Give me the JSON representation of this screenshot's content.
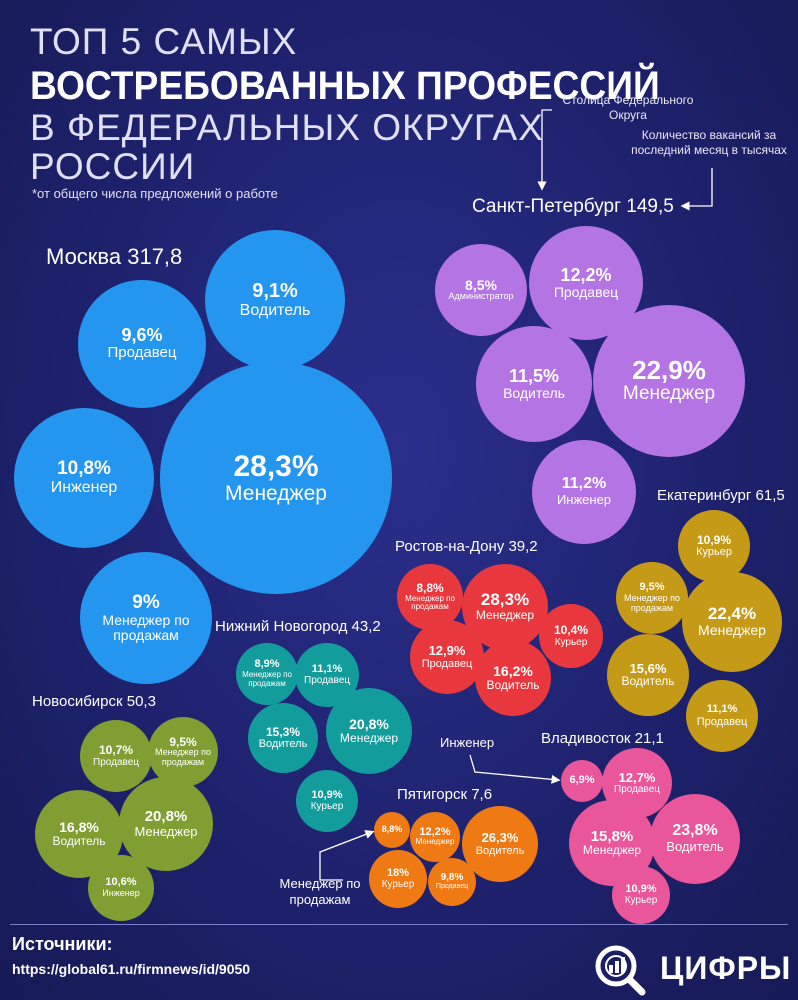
{
  "title": {
    "line1": "ТОП 5 САМЫХ",
    "line2": "ВОСТРЕБОВАННЫХ ПРОФЕССИЙ",
    "line3": "В ФЕДЕРАЛЬНЫХ ОКРУГАХ",
    "line4": "РОССИИ",
    "footnote": "*от общего числа предложений о работе"
  },
  "legend": {
    "capital": "Столица Федерального Округа",
    "vacancies": "Количество вакансий за последний месяц в тысячах",
    "engineer": "Инженер",
    "sales_manager": "Менеджер по продажам"
  },
  "regions": {
    "moscow": {
      "name": "Москва 317,8",
      "items": [
        {
          "pct": "9,1%",
          "job": "Водитель"
        },
        {
          "pct": "9,6%",
          "job": "Продавец"
        },
        {
          "pct": "10,8%",
          "job": "Инженер"
        },
        {
          "pct": "28,3%",
          "job": "Менеджер"
        },
        {
          "pct": "9%",
          "job": "Менеджер по продажам"
        }
      ]
    },
    "spb": {
      "name": "Санкт-Петербург 149,5",
      "items": [
        {
          "pct": "8,5%",
          "job": "Администратор"
        },
        {
          "pct": "12,2%",
          "job": "Продавец"
        },
        {
          "pct": "11,5%",
          "job": "Водитель"
        },
        {
          "pct": "22,9%",
          "job": "Менеджер"
        },
        {
          "pct": "11,2%",
          "job": "Инженер"
        }
      ]
    },
    "ekb": {
      "name": "Екатеринбург 61,5",
      "items": [
        {
          "pct": "10,9%",
          "job": "Курьер"
        },
        {
          "pct": "9,5%",
          "job": "Менеджер по продажам"
        },
        {
          "pct": "22,4%",
          "job": "Менеджер"
        },
        {
          "pct": "15,6%",
          "job": "Водитель"
        },
        {
          "pct": "11,1%",
          "job": "Продавец"
        }
      ]
    },
    "rostov": {
      "name": "Ростов-на-Дону 39,2",
      "items": [
        {
          "pct": "8,8%",
          "job": "Менеджер по продажам"
        },
        {
          "pct": "28,3%",
          "job": "Менеджер"
        },
        {
          "pct": "10,4%",
          "job": "Курьер"
        },
        {
          "pct": "12,9%",
          "job": "Продавец"
        },
        {
          "pct": "16,2%",
          "job": "Водитель"
        }
      ]
    },
    "nnov": {
      "name": "Нижний Новогород 43,2",
      "items": [
        {
          "pct": "8,9%",
          "job": "Менеджер по продажам"
        },
        {
          "pct": "11,1%",
          "job": "Продавец"
        },
        {
          "pct": "15,3%",
          "job": "Водитель"
        },
        {
          "pct": "20,8%",
          "job": "Менеджер"
        },
        {
          "pct": "10,9%",
          "job": "Курьер"
        }
      ]
    },
    "nsk": {
      "name": "Новосибирск 50,3",
      "items": [
        {
          "pct": "10,7%",
          "job": "Продавец"
        },
        {
          "pct": "9,5%",
          "job": "Менеджер по продажам"
        },
        {
          "pct": "16,8%",
          "job": "Водитель"
        },
        {
          "pct": "20,8%",
          "job": "Менеджер"
        },
        {
          "pct": "10,6%",
          "job": "Инженер"
        }
      ]
    },
    "pyat": {
      "name": "Пятигорск 7,6",
      "items": [
        {
          "pct": "8,8%",
          "job": ""
        },
        {
          "pct": "12,2%",
          "job": "Менеджер"
        },
        {
          "pct": "26,3%",
          "job": "Водитель"
        },
        {
          "pct": "18%",
          "job": "Курьер"
        },
        {
          "pct": "9,8%",
          "job": "Продавец"
        }
      ]
    },
    "vlad": {
      "name": "Владивосток 21,1",
      "items": [
        {
          "pct": "6,9%",
          "job": ""
        },
        {
          "pct": "12,7%",
          "job": "Продавец"
        },
        {
          "pct": "15,8%",
          "job": "Менеджер"
        },
        {
          "pct": "23,8%",
          "job": "Водитель"
        },
        {
          "pct": "10,9%",
          "job": "Курьер"
        }
      ]
    }
  },
  "footer": {
    "sources_label": "Источники:",
    "url": "https://global61.ru/firmnews/id/9050",
    "logo": "ЦИФРЫ"
  },
  "colors": {
    "moscow": "#2596f0",
    "spb": "#b474e4",
    "ekb": "#c59a16",
    "rostov": "#e8383e",
    "nnov": "#139c9c",
    "nsk": "#809e32",
    "pyat": "#ef7a14",
    "vlad": "#e9569a"
  }
}
